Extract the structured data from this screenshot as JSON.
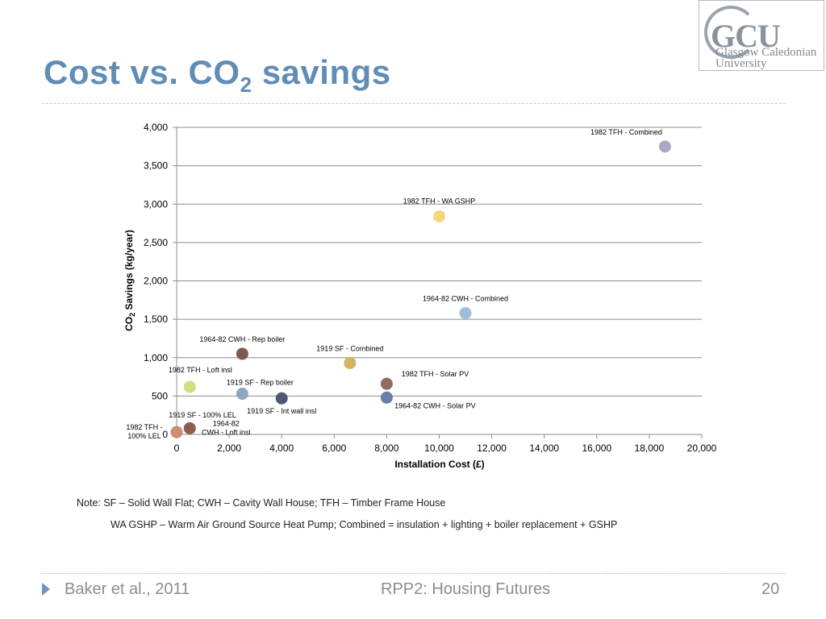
{
  "slide": {
    "title_main": "Cost vs. CO",
    "title_sub": "2",
    "title_end": " savings"
  },
  "logo": {
    "abbr": "GCU",
    "line1": "Glasgow Caledonian",
    "line2": "University",
    "color": "#8a939c"
  },
  "notes": {
    "line1": "Note: SF – Solid Wall Flat; CWH – Cavity Wall House; TFH – Timber Frame House",
    "line2": "WA GSHP – Warm Air Ground Source Heat Pump; Combined = insulation + lighting + boiler replacement + GSHP"
  },
  "footer": {
    "left": "Baker et al., 2011",
    "center": "RPP2: Housing Futures",
    "page": "20"
  },
  "colors": {
    "title": "#5f8db5",
    "accent": "#6f95bc"
  },
  "chart_data": {
    "type": "scatter",
    "title": "",
    "xlabel": "Installation Cost (£)",
    "ylabel_main": "CO",
    "ylabel_sub": "2",
    "ylabel_end": " Savings (kg/year)",
    "xlim": [
      0,
      20000
    ],
    "ylim": [
      0,
      4000
    ],
    "xticks": [
      0,
      2000,
      4000,
      6000,
      8000,
      10000,
      12000,
      14000,
      16000,
      18000,
      20000
    ],
    "xtick_labels": [
      "0",
      "2,000",
      "4,000",
      "6,000",
      "8,000",
      "10,000",
      "12,000",
      "14,000",
      "16,000",
      "18,000",
      "20,000"
    ],
    "yticks": [
      0,
      500,
      1000,
      1500,
      2000,
      2500,
      3000,
      3500,
      4000
    ],
    "ytick_labels": [
      "0",
      "500",
      "1,000",
      "1,500",
      "2,000",
      "2,500",
      "3,000",
      "3,500",
      "4,000"
    ],
    "grid": "horizontal",
    "points": [
      {
        "label": "1982 TFH - Combined",
        "x": 18600,
        "y": 3750,
        "color": "#a9a9c4",
        "label_lines": [
          "1982 TFH - Combined"
        ]
      },
      {
        "label": "1982 TFH - WA GSHP",
        "x": 10000,
        "y": 2840,
        "color": "#f4d77a",
        "label_lines": [
          "1982 TFH - WA GSHP"
        ]
      },
      {
        "label": "1964-82 CWH - Combined",
        "x": 11000,
        "y": 1580,
        "color": "#9dbdd8",
        "label_lines": [
          "1964-82 CWH - Combined"
        ]
      },
      {
        "label": "1964-82 CWH - Rep boiler",
        "x": 2500,
        "y": 1050,
        "color": "#7b5a4f",
        "label_lines": [
          "1964-82 CWH - Rep boiler"
        ]
      },
      {
        "label": "1919 SF - Combined",
        "x": 6600,
        "y": 930,
        "color": "#d2b560",
        "label_lines": [
          "1919 SF - Combined"
        ]
      },
      {
        "label": "1982 TFH - Loft insl",
        "x": 500,
        "y": 620,
        "color": "#cfe080",
        "label_lines": [
          "1982 TFH - Loft insl"
        ]
      },
      {
        "label": "1919 SF - Rep boiler",
        "x": 2500,
        "y": 530,
        "color": "#8ea5bd",
        "label_lines": [
          "1919 SF - Rep boiler"
        ]
      },
      {
        "label": "1982 TFH - Solar PV",
        "x": 8000,
        "y": 660,
        "color": "#946a5c",
        "label_lines": [
          "1982 TFH - Solar PV"
        ]
      },
      {
        "label": "1964-82 CWH - Solar PV",
        "x": 8000,
        "y": 480,
        "color": "#6c7cab",
        "label_lines": [
          "1964-82 CWH - Solar PV"
        ]
      },
      {
        "label": "1919 SF - Int wall insl",
        "x": 4000,
        "y": 470,
        "color": "#4f5977",
        "label_lines": [
          "1919 SF - Int wall insl"
        ]
      },
      {
        "label": "1919 SF - 100% LEL",
        "x": 0,
        "y": 30,
        "color": "#c99070",
        "label_lines": [
          "1919 SF - 100% LEL"
        ]
      },
      {
        "label": "1982 TFH - 100% LEL",
        "x": 0,
        "y": 30,
        "color": "#c99070",
        "label_lines": [
          "1982 TFH -",
          "100% LEL"
        ]
      },
      {
        "label": "1964-82 CWH - Loft insl",
        "x": 500,
        "y": 80,
        "color": "#8d5e50",
        "label_lines": [
          "1964-82",
          "CWH - Loft insl"
        ]
      }
    ]
  }
}
